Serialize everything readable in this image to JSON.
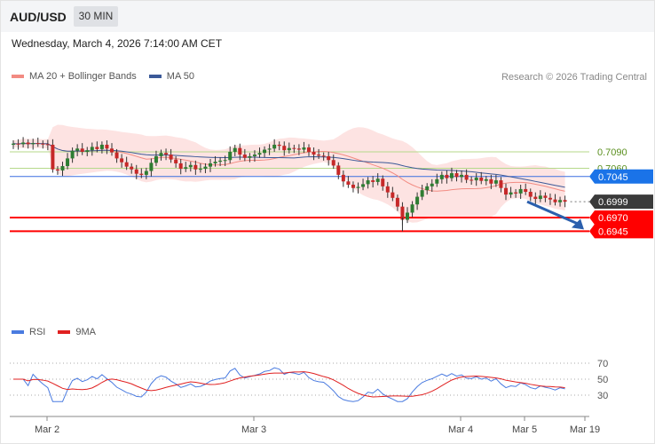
{
  "header": {
    "symbol": "AUD/USD",
    "timeframe": "30 MIN",
    "datetime": "Wednesday, March 4, 2026 7:14:00 AM CET"
  },
  "legend_price": {
    "bb": {
      "label": "MA 20 + Bollinger Bands",
      "color": "#f28b82"
    },
    "ma50": {
      "label": "MA 50",
      "color": "#3b5998"
    }
  },
  "legend_rsi": {
    "rsi": {
      "label": "RSI",
      "color": "#4a7be0"
    },
    "ma9": {
      "label": "9MA",
      "color": "#e02020"
    }
  },
  "credit": "Research © 2026 Trading Central",
  "colors": {
    "up": "#2e7d32",
    "down": "#c62828",
    "band": "#fde3e2",
    "level_green": "#b5d98a",
    "level_blue": "#3a6fe0",
    "level_red": "#ff0000",
    "tag_dark": "#3a3a3a",
    "tag_blue": "#1a73e8",
    "tag_red": "#ff0000",
    "arrow": "#2b5fad"
  },
  "chart_data": {
    "type": "candlestick",
    "instrument": "AUD/USD",
    "interval": "30 MIN",
    "ylim": [
      0.6925,
      0.7125
    ],
    "x_ticks": [
      "Mar 2",
      "Mar 3",
      "Mar 4",
      "Mar 5",
      "Mar 19"
    ],
    "levels": [
      {
        "value": 0.709,
        "label": "0.7090",
        "style": "green"
      },
      {
        "value": 0.706,
        "label": "0.7060",
        "style": "green"
      },
      {
        "value": 0.7045,
        "label": "0.7045",
        "style": "blue"
      },
      {
        "value": 0.6999,
        "label": "0.6999",
        "style": "current"
      },
      {
        "value": 0.697,
        "label": "0.6970",
        "style": "red"
      },
      {
        "value": 0.6945,
        "label": "0.6945",
        "style": "red"
      }
    ],
    "closes": [
      0.7105,
      0.7104,
      0.7107,
      0.7104,
      0.7106,
      0.7105,
      0.7104,
      0.7103,
      0.7058,
      0.7056,
      0.7064,
      0.7078,
      0.7092,
      0.7096,
      0.709,
      0.7093,
      0.7099,
      0.7095,
      0.7103,
      0.7096,
      0.7089,
      0.7078,
      0.7071,
      0.7063,
      0.7058,
      0.705,
      0.7048,
      0.7055,
      0.707,
      0.7082,
      0.7088,
      0.7085,
      0.7076,
      0.7069,
      0.7059,
      0.7062,
      0.7066,
      0.7058,
      0.7059,
      0.7063,
      0.7069,
      0.7072,
      0.7074,
      0.7075,
      0.709,
      0.7097,
      0.7085,
      0.7079,
      0.7082,
      0.7085,
      0.7088,
      0.7094,
      0.7096,
      0.7103,
      0.7101,
      0.7093,
      0.7097,
      0.7096,
      0.7094,
      0.7098,
      0.709,
      0.7085,
      0.7083,
      0.7082,
      0.7075,
      0.7065,
      0.7048,
      0.7036,
      0.703,
      0.7024,
      0.7026,
      0.7031,
      0.7038,
      0.7035,
      0.7041,
      0.7027,
      0.7016,
      0.7006,
      0.699,
      0.6966,
      0.6979,
      0.6994,
      0.7008,
      0.702,
      0.7027,
      0.7032,
      0.704,
      0.7048,
      0.7042,
      0.7051,
      0.7044,
      0.7048,
      0.7039,
      0.7038,
      0.7043,
      0.7037,
      0.704,
      0.7032,
      0.7038,
      0.7024,
      0.7012,
      0.7016,
      0.7014,
      0.7022,
      0.7017,
      0.7008,
      0.7004,
      0.701,
      0.7006,
      0.7003,
      0.6998,
      0.7002,
      0.6999
    ],
    "indicators": {
      "ma20_bollinger": "MA 20 + Bollinger Bands",
      "ma50": "MA 50",
      "rsi": {
        "name": "RSI",
        "ticks": [
          70,
          50,
          30
        ],
        "ylim": [
          20,
          80
        ]
      },
      "rsi_ma": "9MA"
    },
    "forecast_arrow": {
      "from": 0.6999,
      "to": 0.6945
    }
  }
}
